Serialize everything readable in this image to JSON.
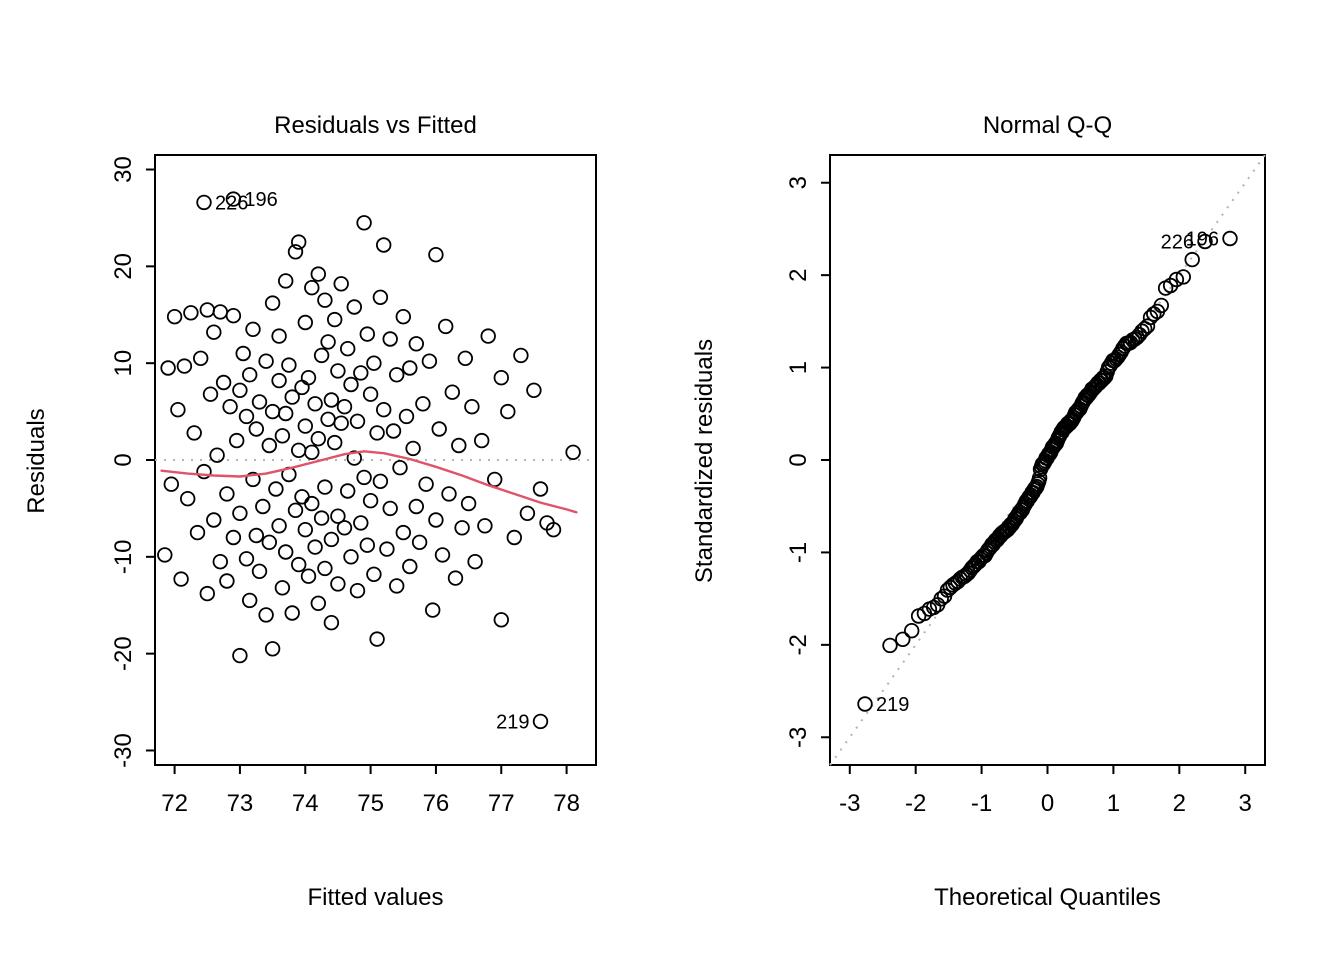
{
  "figure": {
    "background": "#ffffff",
    "point_color": "#000000",
    "ref_line_color": "#b4b4b4",
    "smooth_color": "#DF536B",
    "marker": "open-circle"
  },
  "chart_data": [
    {
      "type": "scatter",
      "title": "Residuals vs Fitted",
      "xlabel": "Fitted values",
      "ylabel": "Residuals",
      "xlim": [
        71.7,
        78.45
      ],
      "ylim": [
        -31.5,
        31.5
      ],
      "xticks": [
        72,
        73,
        74,
        75,
        76,
        77,
        78
      ],
      "yticks": [
        -30,
        -20,
        -10,
        0,
        10,
        20,
        30
      ],
      "zero_line": 0,
      "grid": false,
      "points": [
        [
          71.85,
          -9.8
        ],
        [
          71.9,
          9.5
        ],
        [
          71.95,
          -2.5
        ],
        [
          72.0,
          14.8
        ],
        [
          72.05,
          5.2
        ],
        [
          72.1,
          -12.3
        ],
        [
          72.15,
          9.7
        ],
        [
          72.2,
          -4.0
        ],
        [
          72.25,
          15.2
        ],
        [
          72.3,
          2.8
        ],
        [
          72.35,
          -7.5
        ],
        [
          72.4,
          10.5
        ],
        [
          72.45,
          -1.2
        ],
        [
          72.5,
          15.5
        ],
        [
          72.5,
          -13.8
        ],
        [
          72.55,
          6.8
        ],
        [
          72.6,
          -6.2
        ],
        [
          72.6,
          13.2
        ],
        [
          72.65,
          0.5
        ],
        [
          72.7,
          -10.5
        ],
        [
          72.7,
          15.3
        ],
        [
          72.75,
          8.0
        ],
        [
          72.8,
          -3.5
        ],
        [
          72.8,
          -12.5
        ],
        [
          72.85,
          5.5
        ],
        [
          72.9,
          14.9
        ],
        [
          72.9,
          -8.0
        ],
        [
          72.95,
          2.0
        ],
        [
          73.0,
          -20.2
        ],
        [
          73.0,
          7.2
        ],
        [
          73.0,
          -5.5
        ],
        [
          73.05,
          11.0
        ],
        [
          73.1,
          -10.2
        ],
        [
          73.1,
          4.5
        ],
        [
          73.15,
          -14.5
        ],
        [
          73.15,
          8.8
        ],
        [
          73.2,
          -2.0
        ],
        [
          73.2,
          13.5
        ],
        [
          73.25,
          -7.8
        ],
        [
          73.25,
          3.2
        ],
        [
          73.3,
          -11.5
        ],
        [
          73.3,
          6.0
        ],
        [
          73.35,
          -4.8
        ],
        [
          73.4,
          10.2
        ],
        [
          73.4,
          -16.0
        ],
        [
          73.45,
          1.5
        ],
        [
          73.45,
          -8.5
        ],
        [
          73.5,
          16.2
        ],
        [
          73.5,
          -19.5
        ],
        [
          73.5,
          5.0
        ],
        [
          73.55,
          -3.0
        ],
        [
          73.6,
          12.8
        ],
        [
          73.6,
          -6.8
        ],
        [
          73.6,
          8.2
        ],
        [
          73.65,
          -13.2
        ],
        [
          73.65,
          2.5
        ],
        [
          73.7,
          18.5
        ],
        [
          73.7,
          -9.5
        ],
        [
          73.7,
          4.8
        ],
        [
          73.75,
          -1.5
        ],
        [
          73.75,
          9.8
        ],
        [
          73.8,
          -15.8
        ],
        [
          73.8,
          6.5
        ],
        [
          73.85,
          21.5
        ],
        [
          73.85,
          -5.2
        ],
        [
          73.9,
          22.5
        ],
        [
          73.9,
          1.0
        ],
        [
          73.9,
          -10.8
        ],
        [
          73.95,
          7.5
        ],
        [
          73.95,
          -3.8
        ],
        [
          74.0,
          14.2
        ],
        [
          74.0,
          -7.2
        ],
        [
          74.0,
          3.5
        ],
        [
          74.05,
          -12.0
        ],
        [
          74.05,
          8.5
        ],
        [
          74.1,
          17.8
        ],
        [
          74.1,
          -4.5
        ],
        [
          74.1,
          0.8
        ],
        [
          74.15,
          -9.0
        ],
        [
          74.15,
          5.8
        ],
        [
          74.2,
          19.2
        ],
        [
          74.2,
          -14.8
        ],
        [
          74.2,
          2.2
        ],
        [
          74.25,
          -6.0
        ],
        [
          74.25,
          10.8
        ],
        [
          74.3,
          16.5
        ],
        [
          74.3,
          -2.8
        ],
        [
          74.3,
          -11.2
        ],
        [
          74.35,
          4.2
        ],
        [
          74.35,
          12.2
        ],
        [
          74.4,
          -8.2
        ],
        [
          74.4,
          6.2
        ],
        [
          74.4,
          -16.8
        ],
        [
          74.45,
          1.8
        ],
        [
          74.45,
          14.5
        ],
        [
          74.5,
          -5.8
        ],
        [
          74.5,
          9.2
        ],
        [
          74.5,
          -12.8
        ],
        [
          74.55,
          3.8
        ],
        [
          74.55,
          18.2
        ],
        [
          74.6,
          -7.0
        ],
        [
          74.6,
          5.5
        ],
        [
          74.65,
          11.5
        ],
        [
          74.65,
          -3.2
        ],
        [
          74.7,
          -10.0
        ],
        [
          74.7,
          7.8
        ],
        [
          74.75,
          15.8
        ],
        [
          74.75,
          0.2
        ],
        [
          74.8,
          -13.5
        ],
        [
          74.8,
          4.0
        ],
        [
          74.85,
          9.0
        ],
        [
          74.85,
          -6.5
        ],
        [
          74.9,
          24.5
        ],
        [
          74.9,
          -1.8
        ],
        [
          74.95,
          13.0
        ],
        [
          74.95,
          -8.8
        ],
        [
          75.0,
          6.8
        ],
        [
          75.0,
          -4.2
        ],
        [
          75.05,
          10.0
        ],
        [
          75.05,
          -11.8
        ],
        [
          75.1,
          2.8
        ],
        [
          75.1,
          -18.5
        ],
        [
          75.15,
          16.8
        ],
        [
          75.15,
          -2.2
        ],
        [
          75.2,
          22.2
        ],
        [
          75.2,
          5.2
        ],
        [
          75.25,
          -9.2
        ],
        [
          75.3,
          12.5
        ],
        [
          75.3,
          -5.0
        ],
        [
          75.35,
          3.0
        ],
        [
          75.4,
          -13.0
        ],
        [
          75.4,
          8.8
        ],
        [
          75.45,
          -0.8
        ],
        [
          75.5,
          14.8
        ],
        [
          75.5,
          -7.5
        ],
        [
          75.55,
          4.5
        ],
        [
          75.6,
          -11.0
        ],
        [
          75.6,
          9.5
        ],
        [
          75.65,
          1.2
        ],
        [
          75.7,
          -4.8
        ],
        [
          75.7,
          12.0
        ],
        [
          75.75,
          -8.5
        ],
        [
          75.8,
          5.8
        ],
        [
          75.85,
          -2.5
        ],
        [
          75.9,
          10.2
        ],
        [
          75.95,
          -15.5
        ],
        [
          76.0,
          21.2
        ],
        [
          76.0,
          -6.2
        ],
        [
          76.05,
          3.2
        ],
        [
          76.1,
          -9.8
        ],
        [
          76.15,
          13.8
        ],
        [
          76.2,
          -3.5
        ],
        [
          76.25,
          7.0
        ],
        [
          76.3,
          -12.2
        ],
        [
          76.35,
          1.5
        ],
        [
          76.4,
          -7.0
        ],
        [
          76.45,
          10.5
        ],
        [
          76.5,
          -4.5
        ],
        [
          76.55,
          5.5
        ],
        [
          76.6,
          -10.5
        ],
        [
          76.7,
          2.0
        ],
        [
          76.75,
          -6.8
        ],
        [
          76.8,
          12.8
        ],
        [
          76.9,
          -2.0
        ],
        [
          77.0,
          -16.5
        ],
        [
          77.0,
          8.5
        ],
        [
          77.1,
          5.0
        ],
        [
          77.2,
          -8.0
        ],
        [
          77.3,
          10.8
        ],
        [
          77.4,
          -5.5
        ],
        [
          77.5,
          7.2
        ],
        [
          77.6,
          -3.0
        ],
        [
          77.7,
          -6.5
        ],
        [
          77.8,
          -7.2
        ],
        [
          78.1,
          0.8
        ]
      ],
      "labeled_points": [
        {
          "label": "226",
          "x": 72.45,
          "y": 26.6,
          "side": "right"
        },
        {
          "label": "196",
          "x": 72.9,
          "y": 26.95,
          "side": "right"
        },
        {
          "label": "219",
          "x": 77.6,
          "y": -27.0,
          "side": "left"
        }
      ],
      "smooth_line": [
        [
          71.8,
          -1.1
        ],
        [
          72.2,
          -1.4
        ],
        [
          72.6,
          -1.6
        ],
        [
          73.0,
          -1.7
        ],
        [
          73.4,
          -1.4
        ],
        [
          73.8,
          -0.8
        ],
        [
          74.2,
          -0.1
        ],
        [
          74.6,
          0.6
        ],
        [
          74.9,
          0.9
        ],
        [
          75.2,
          0.7
        ],
        [
          75.6,
          0.1
        ],
        [
          76.0,
          -0.7
        ],
        [
          76.4,
          -1.6
        ],
        [
          76.8,
          -2.6
        ],
        [
          77.2,
          -3.5
        ],
        [
          77.6,
          -4.4
        ],
        [
          78.0,
          -5.1
        ],
        [
          78.15,
          -5.4
        ]
      ]
    },
    {
      "type": "scatter",
      "title": "Normal Q-Q",
      "xlabel": "Theoretical Quantiles",
      "ylabel": "Standardized residuals",
      "xlim": [
        -3.3,
        3.3
      ],
      "ylim": [
        -3.3,
        3.3
      ],
      "xticks": [
        -3,
        -2,
        -1,
        0,
        1,
        2,
        3
      ],
      "yticks": [
        -3,
        -2,
        -1,
        0,
        1,
        2,
        3
      ],
      "reference_line": "dotted identity line (qqline)",
      "grid": false,
      "points_source": "standardized residuals = sorted residuals of panel 1 divided by their sample sd; theoretical quantiles = qnorm((i-0.5)/n), n = 178",
      "labeled_points": [
        {
          "label": "226",
          "side": "left"
        },
        {
          "label": "196",
          "side": "left"
        },
        {
          "label": "219",
          "side": "right"
        }
      ]
    }
  ]
}
